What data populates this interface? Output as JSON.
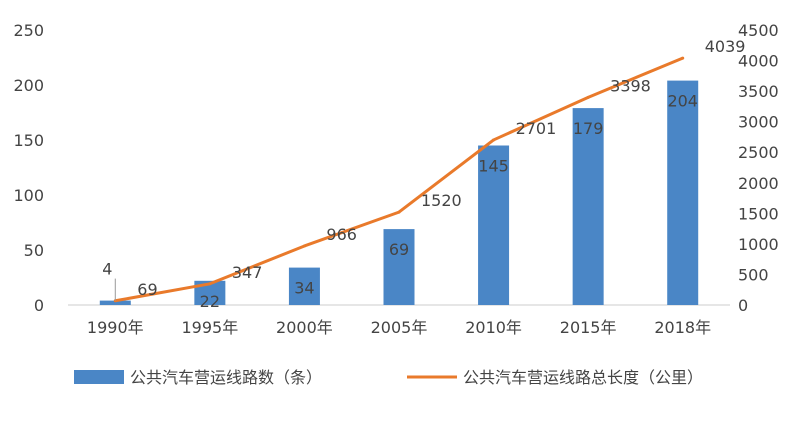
{
  "chart_data": {
    "type": "bar",
    "categories": [
      "1990年",
      "1995年",
      "2000年",
      "2005年",
      "2010年",
      "2015年",
      "2018年"
    ],
    "series": [
      {
        "name": "公共汽车营运线路数（条）",
        "type": "bar",
        "axis": "left",
        "values": [
          4,
          22,
          34,
          69,
          145,
          179,
          204
        ],
        "labels": [
          "4",
          "22",
          "34",
          "69",
          "145",
          "179",
          "204"
        ]
      },
      {
        "name": "公共汽车营运线路总长度（公里）",
        "type": "line",
        "axis": "right",
        "values": [
          69,
          347,
          966,
          1520,
          2701,
          3398,
          4039
        ],
        "labels": [
          "69",
          "347",
          "966",
          "1520",
          "2701",
          "3398",
          "4039"
        ]
      }
    ],
    "y_left": {
      "min": 0,
      "max": 250,
      "ticks": [
        "0",
        "50",
        "100",
        "150",
        "200",
        "250"
      ]
    },
    "y_right": {
      "min": 0,
      "max": 4500,
      "ticks": [
        "0",
        "500",
        "1000",
        "1500",
        "2000",
        "2500",
        "3000",
        "3500",
        "4000",
        "4500"
      ]
    },
    "title": "",
    "xlabel": "",
    "ylabel": "",
    "grid": false,
    "legend_position": "bottom",
    "colors": {
      "bar": "#4a86c6",
      "line": "#e97a2b",
      "text": "#444444",
      "axis": "#cccccc"
    }
  }
}
